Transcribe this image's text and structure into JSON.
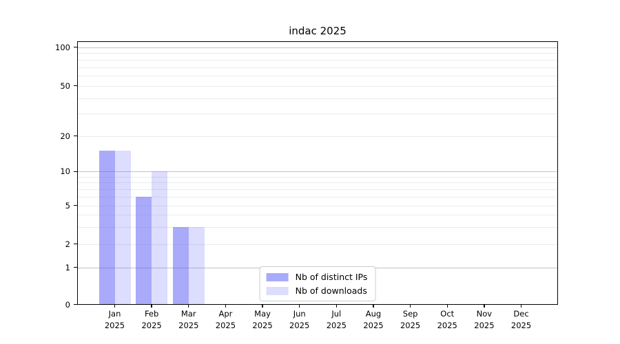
{
  "chart_data": {
    "type": "bar",
    "title": "indac 2025",
    "categories": [
      "Jan",
      "Feb",
      "Mar",
      "Apr",
      "May",
      "Jun",
      "Jul",
      "Aug",
      "Sep",
      "Oct",
      "Nov",
      "Dec"
    ],
    "x_year_label": "2025",
    "series": [
      {
        "name": "Nb of distinct IPs",
        "color": "rgba(85,85,245,0.50)",
        "values": [
          15,
          6,
          3,
          0,
          0,
          0,
          0,
          0,
          0,
          0,
          0,
          0
        ]
      },
      {
        "name": "Nb of downloads",
        "color": "rgba(85,85,245,0.20)",
        "values": [
          15,
          10,
          3,
          0,
          0,
          0,
          0,
          0,
          0,
          0,
          0,
          0
        ]
      }
    ],
    "y_axis": {
      "scale": "symlog",
      "ticks": [
        0,
        1,
        2,
        5,
        10,
        20,
        50,
        100
      ],
      "major_gridlines": [
        1,
        10,
        100
      ],
      "minor_gridlines": [
        3,
        4,
        6,
        7,
        8,
        9,
        30,
        40,
        60,
        70,
        80,
        90
      ],
      "ylim": [
        0,
        107
      ]
    },
    "xlabel": "",
    "ylabel": "",
    "grid": true,
    "legend": {
      "position": "lower center",
      "entries": [
        "Nb of distinct IPs",
        "Nb of downloads"
      ]
    },
    "colors": {
      "bar_dark": "#aaaafa",
      "bar_light": "#dcdcfc",
      "major_grid": "#c3c3c3",
      "minor_grid": "#ececec",
      "axis": "#000000",
      "text": "#000000",
      "background": "#ffffff"
    }
  }
}
